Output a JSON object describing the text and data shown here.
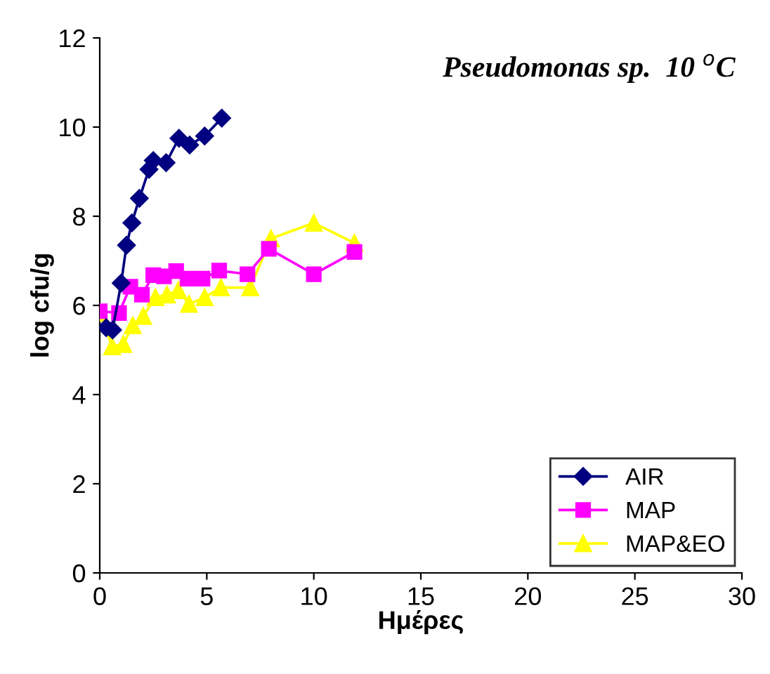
{
  "chart_data": {
    "type": "line",
    "title": "Pseudomonas sp.  10 $^{o}$C",
    "xlabel": "Ημέρες",
    "ylabel": "log cfu/g",
    "xlim": [
      0,
      30
    ],
    "xticks": [
      0,
      5,
      10,
      15,
      20,
      25,
      30
    ],
    "ylim": [
      0,
      12
    ],
    "yticks": [
      0,
      2,
      4,
      6,
      8,
      10,
      12
    ],
    "grid": false,
    "legend": "bottom right",
    "series": [
      {
        "name": "AIR",
        "color": "#000080",
        "marker": "diamond",
        "x": [
          0.3,
          0.6,
          1.0,
          1.25,
          1.5,
          1.85,
          2.3,
          2.5,
          3.1,
          3.7,
          4.2,
          4.9,
          5.7
        ],
        "values": [
          5.5,
          5.45,
          6.5,
          7.35,
          7.85,
          8.4,
          9.05,
          9.25,
          9.2,
          9.75,
          9.6,
          9.8,
          10.2
        ]
      },
      {
        "name": "MAP",
        "color": "#ff00ff",
        "marker": "square",
        "x": [
          0,
          0.9,
          1.43,
          1.97,
          2.5,
          3.0,
          3.57,
          4.1,
          4.8,
          5.58,
          6.9,
          7.9,
          10,
          11.9
        ],
        "values": [
          5.87,
          5.83,
          6.42,
          6.24,
          6.68,
          6.65,
          6.77,
          6.6,
          6.6,
          6.78,
          6.7,
          7.27,
          6.7,
          7.2
        ]
      },
      {
        "name": "MAP&EO",
        "color": "#ffff00",
        "marker": "triangle",
        "x": [
          0,
          0.58,
          1.1,
          1.54,
          2.03,
          2.6,
          3.14,
          3.67,
          4.17,
          4.9,
          5.66,
          7.03,
          8.0,
          10,
          11.9
        ],
        "values": [
          5.83,
          5.08,
          5.13,
          5.55,
          5.76,
          6.18,
          6.24,
          6.34,
          6.03,
          6.18,
          6.4,
          6.4,
          7.5,
          7.85,
          7.4
        ]
      }
    ]
  }
}
